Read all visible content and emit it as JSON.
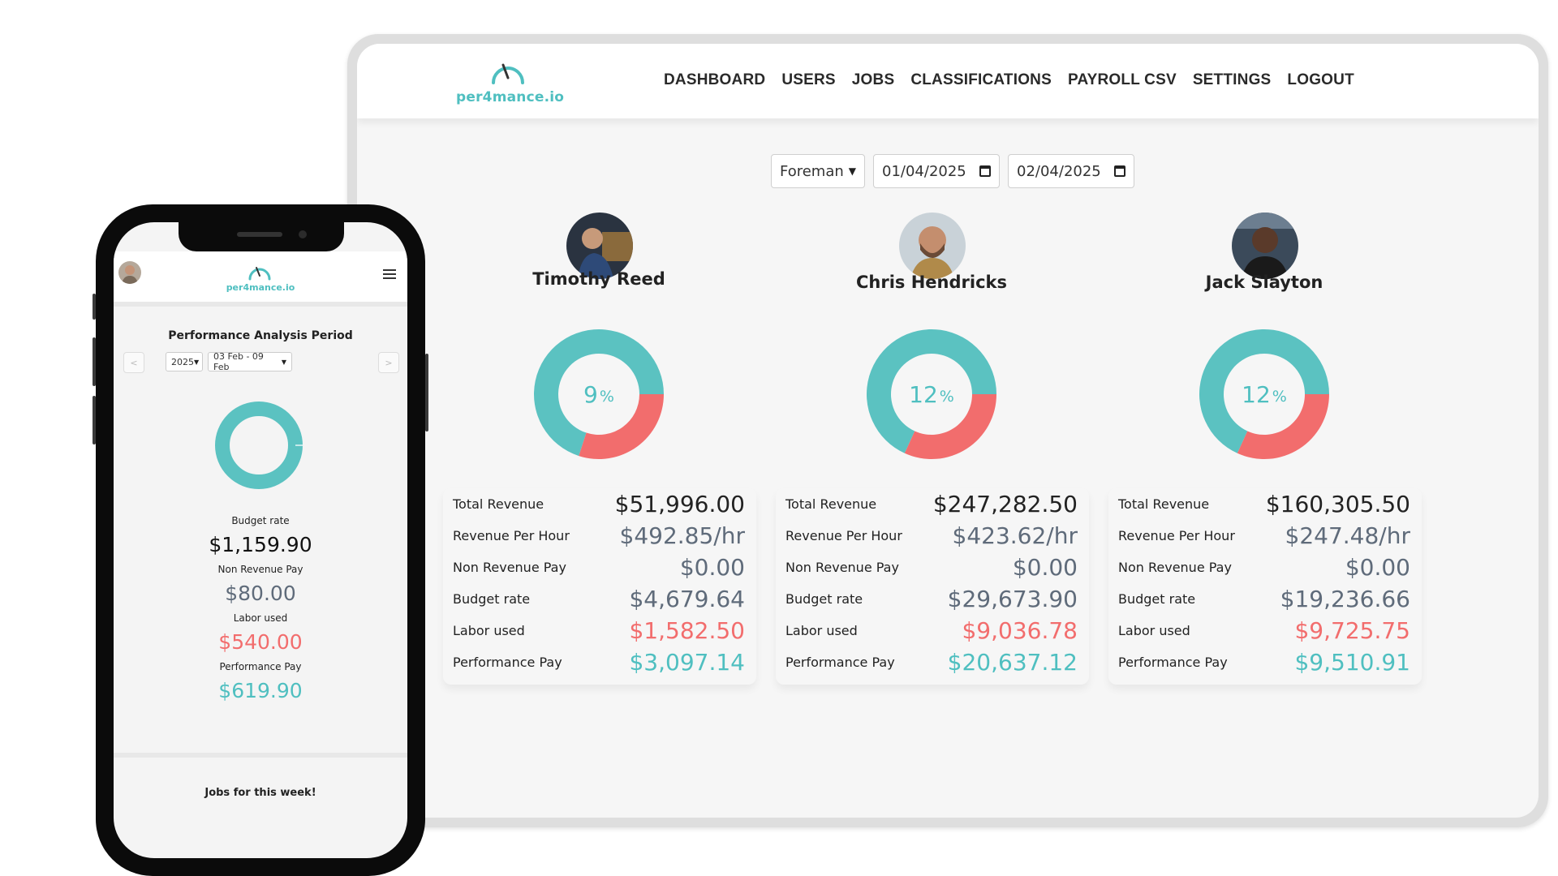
{
  "brand": {
    "name": "per4mance.io",
    "accent": "#4fbfc0",
    "danger": "#f26d6d"
  },
  "nav": {
    "items": [
      "DASHBOARD",
      "USERS",
      "JOBS",
      "CLASSIFICATIONS",
      "PAYROLL CSV",
      "SETTINGS",
      "LOGOUT"
    ]
  },
  "filters": {
    "classification": "Foreman",
    "start_date": "01/04/2025",
    "end_date": "02/04/2025"
  },
  "labels": {
    "total_revenue": "Total Revenue",
    "revenue_per_hour": "Revenue Per Hour",
    "non_revenue_pay": "Non Revenue Pay",
    "budget_rate": "Budget rate",
    "labor_used": "Labor used",
    "performance_pay": "Performance Pay"
  },
  "people": [
    {
      "name": "Timothy Reed",
      "percent": "9",
      "percent_sign": "%",
      "percent_value": 9,
      "total_revenue": "$51,996.00",
      "revenue_per_hour": "$492.85/hr",
      "non_revenue_pay": "$0.00",
      "budget_rate": "$4,679.64",
      "labor_used": "$1,582.50",
      "performance_pay": "$3,097.14"
    },
    {
      "name": "Chris Hendricks",
      "percent": "12",
      "percent_sign": "%",
      "percent_value": 12,
      "total_revenue": "$247,282.50",
      "revenue_per_hour": "$423.62/hr",
      "non_revenue_pay": "$0.00",
      "budget_rate": "$29,673.90",
      "labor_used": "$9,036.78",
      "performance_pay": "$20,637.12"
    },
    {
      "name": "Jack Slayton",
      "percent": "12",
      "percent_sign": "%",
      "percent_value": 12,
      "total_revenue": "$160,305.50",
      "revenue_per_hour": "$247.48/hr",
      "non_revenue_pay": "$0.00",
      "budget_rate": "$19,236.66",
      "labor_used": "$9,725.75",
      "performance_pay": "$9,510.91"
    }
  ],
  "mobile": {
    "logo": "per4mance.io",
    "title": "Performance Analysis Period",
    "prev": "<",
    "next": ">",
    "year": "2025",
    "week": "03 Feb - 09 Feb",
    "budget_rate_label": "Budget rate",
    "budget_rate": "$1,159.90",
    "non_revenue_pay_label": "Non Revenue Pay",
    "non_revenue_pay": "$80.00",
    "labor_used_label": "Labor used",
    "labor_used": "$540.00",
    "performance_pay_label": "Performance Pay",
    "performance_pay": "$619.90",
    "jobs_title": "Jobs for this week!"
  }
}
